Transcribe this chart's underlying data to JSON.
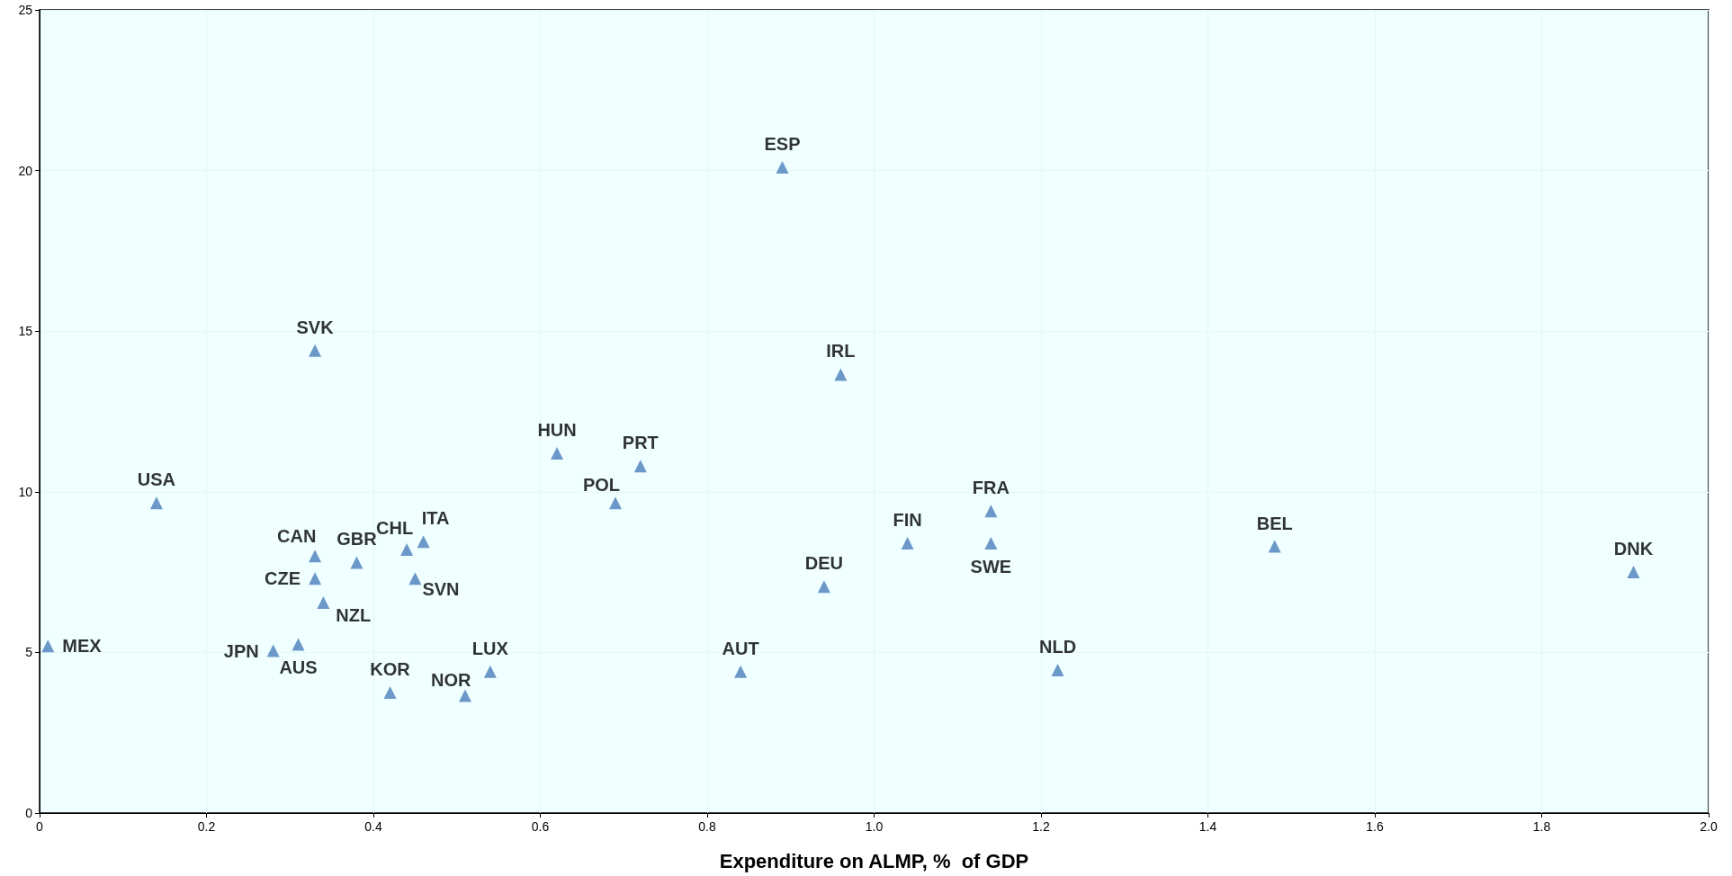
{
  "chart_data": {
    "type": "scatter",
    "xlabel": "Expenditure on ALMP, %  of GDP",
    "x": [
      0.01,
      0.14,
      0.33,
      0.33,
      0.33,
      0.34,
      0.31,
      0.28,
      0.38,
      0.44,
      0.46,
      0.45,
      0.42,
      0.51,
      0.54,
      0.62,
      0.69,
      0.72,
      0.89,
      0.96,
      0.84,
      0.94,
      1.04,
      1.14,
      1.14,
      1.22,
      1.48,
      1.91
    ],
    "series": [
      {
        "color": "#4a7ebb",
        "values": [
          5.2,
          9.65,
          14.4,
          8.0,
          7.3,
          6.55,
          5.25,
          5.05,
          7.8,
          8.2,
          8.45,
          7.3,
          3.75,
          3.65,
          4.4,
          11.2,
          9.65,
          10.8,
          20.1,
          13.65,
          4.4,
          7.05,
          8.4,
          9.4,
          8.4,
          4.45,
          8.3,
          7.5
        ]
      }
    ],
    "annotations": [
      {
        "text": "MEX",
        "x": 0.01,
        "y": 5.2
      },
      {
        "text": "USA",
        "x": 0.14,
        "y": 9.65
      },
      {
        "text": "SVK",
        "x": 0.33,
        "y": 14.4
      },
      {
        "text": "CAN",
        "x": 0.33,
        "y": 8.0
      },
      {
        "text": "CZE",
        "x": 0.33,
        "y": 7.3
      },
      {
        "text": "NZL",
        "x": 0.34,
        "y": 6.55
      },
      {
        "text": "AUS",
        "x": 0.31,
        "y": 5.25
      },
      {
        "text": "JPN",
        "x": 0.28,
        "y": 5.05
      },
      {
        "text": "GBR",
        "x": 0.38,
        "y": 7.8
      },
      {
        "text": "CHL",
        "x": 0.44,
        "y": 8.2
      },
      {
        "text": "ITA",
        "x": 0.46,
        "y": 8.45
      },
      {
        "text": "SVN",
        "x": 0.45,
        "y": 7.3
      },
      {
        "text": "KOR",
        "x": 0.42,
        "y": 3.75
      },
      {
        "text": "NOR",
        "x": 0.51,
        "y": 3.65
      },
      {
        "text": "LUX",
        "x": 0.54,
        "y": 4.4
      },
      {
        "text": "HUN",
        "x": 0.62,
        "y": 11.2
      },
      {
        "text": "POL",
        "x": 0.69,
        "y": 9.65
      },
      {
        "text": "PRT",
        "x": 0.72,
        "y": 10.8
      },
      {
        "text": "ESP",
        "x": 0.89,
        "y": 20.1
      },
      {
        "text": "IRL",
        "x": 0.96,
        "y": 13.65
      },
      {
        "text": "AUT",
        "x": 0.84,
        "y": 4.4
      },
      {
        "text": "DEU",
        "x": 0.94,
        "y": 7.05
      },
      {
        "text": "FIN",
        "x": 1.04,
        "y": 8.4
      },
      {
        "text": "FRA",
        "x": 1.14,
        "y": 9.4
      },
      {
        "text": "SWE",
        "x": 1.14,
        "y": 8.4
      },
      {
        "text": "NLD",
        "x": 1.22,
        "y": 4.45
      },
      {
        "text": "BEL",
        "x": 1.48,
        "y": 8.3
      },
      {
        "text": "DNK",
        "x": 1.91,
        "y": 7.5
      }
    ],
    "xlim": [
      0,
      2.0
    ],
    "xticks": [
      0,
      {
        "value": 0.2,
        "label": "0.2"
      },
      {
        "value": 0.4,
        "label": "0.4"
      },
      {
        "value": 0.6,
        "label": "0.6"
      },
      {
        "value": 0.8,
        "label": "0.8"
      },
      {
        "value": 1.0,
        "label": "1.0"
      },
      {
        "value": 1.2,
        "label": "1.2"
      },
      {
        "value": 1.4,
        "label": "1.4"
      },
      {
        "value": 1.6,
        "label": "1.6"
      },
      {
        "value": 1.8,
        "label": "1.8"
      },
      {
        "value": 2.0,
        "label": "2.0"
      }
    ],
    "ylim": [
      0,
      25
    ],
    "yticks": [
      0,
      5,
      10,
      15,
      20,
      25
    ],
    "grid": true,
    "marker": "triangle"
  }
}
